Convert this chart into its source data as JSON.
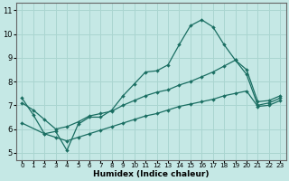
{
  "xlabel": "Humidex (Indice chaleur)",
  "bg_color": "#c5e8e5",
  "line_color": "#1a6e62",
  "grid_color": "#aad5d0",
  "xlim": [
    -0.5,
    23.5
  ],
  "ylim": [
    4.7,
    11.3
  ],
  "xticks": [
    0,
    1,
    2,
    3,
    4,
    5,
    6,
    7,
    8,
    9,
    10,
    11,
    12,
    13,
    14,
    15,
    16,
    17,
    18,
    19,
    20,
    21,
    22,
    23
  ],
  "yticks": [
    5,
    6,
    7,
    8,
    9,
    10,
    11
  ],
  "s1_x": [
    0,
    1,
    2,
    3,
    4,
    5,
    6,
    7,
    8,
    9,
    10,
    11,
    12,
    13,
    14,
    15,
    16,
    17,
    18,
    19,
    20,
    21,
    22,
    23
  ],
  "s1_y": [
    7.3,
    6.6,
    5.8,
    5.9,
    5.1,
    6.2,
    6.5,
    6.5,
    6.8,
    7.4,
    7.9,
    8.4,
    8.45,
    8.7,
    9.55,
    10.35,
    10.6,
    10.3,
    9.55,
    8.9,
    8.3,
    7.0,
    7.1,
    7.3
  ],
  "s2_x": [
    0,
    1,
    2,
    3,
    4,
    5,
    6,
    7,
    8,
    9,
    10,
    11,
    12,
    13,
    14,
    15,
    16,
    17,
    18,
    19,
    20,
    21,
    22,
    23
  ],
  "s2_y": [
    7.1,
    6.8,
    6.4,
    6.0,
    6.1,
    6.3,
    6.55,
    6.65,
    6.75,
    7.0,
    7.2,
    7.4,
    7.55,
    7.65,
    7.85,
    8.0,
    8.2,
    8.4,
    8.65,
    8.9,
    8.5,
    7.15,
    7.2,
    7.4
  ],
  "s3_x": [
    0,
    2,
    3,
    4,
    5,
    6,
    7,
    8,
    9,
    10,
    11,
    12,
    13,
    14,
    15,
    16,
    17,
    18,
    19,
    20,
    21,
    22,
    23
  ],
  "s3_y": [
    6.25,
    5.8,
    5.65,
    5.5,
    5.65,
    5.8,
    5.95,
    6.1,
    6.25,
    6.4,
    6.55,
    6.65,
    6.8,
    6.95,
    7.05,
    7.15,
    7.25,
    7.4,
    7.5,
    7.6,
    6.95,
    7.0,
    7.2
  ]
}
